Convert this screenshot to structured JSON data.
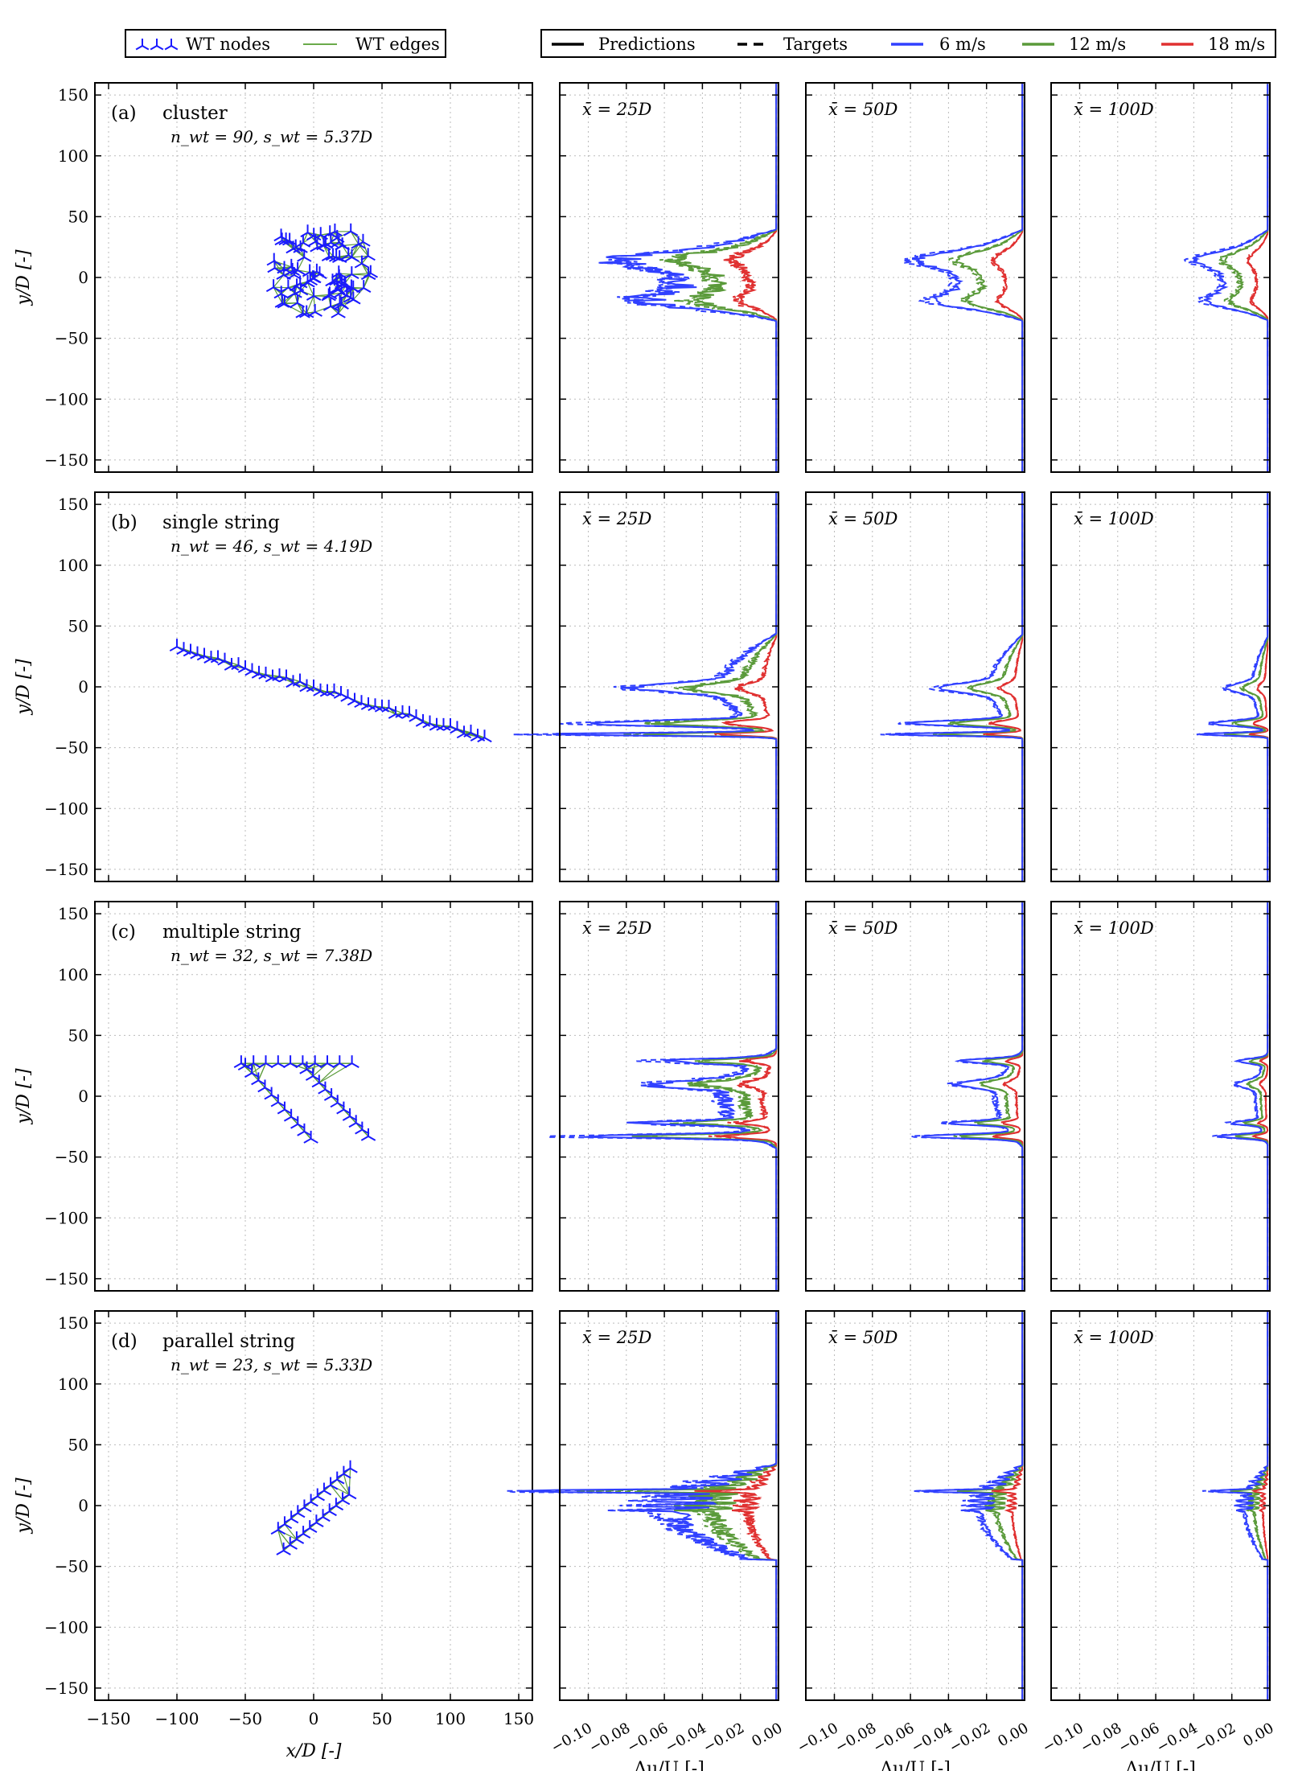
{
  "chart_data": {
    "type": "line",
    "legend_layout": {
      "nodes_label": "WT nodes",
      "edges_label": "WT edges",
      "placement": "top-left"
    },
    "legend_profiles": {
      "predictions_label": "Predictions",
      "targets_label": "Targets",
      "speeds": [
        {
          "label": "6 m/s",
          "color": "#3040ff"
        },
        {
          "label": "12 m/s",
          "color": "#5a9a3a"
        },
        {
          "label": "18 m/s",
          "color": "#e03030"
        }
      ],
      "placement": "top-right"
    },
    "layout_axes": {
      "xlabel": "x/D [-]",
      "ylabel": "y/D [-]",
      "xlim": [
        -160,
        160
      ],
      "ylim": [
        -160,
        160
      ],
      "xticks": [
        "−150",
        "−100",
        "−50",
        "0",
        "50",
        "100",
        "150"
      ],
      "yticks": [
        "150",
        "100",
        "50",
        "0",
        "−50",
        "−100",
        "−150"
      ]
    },
    "profile_axes": {
      "xlabel": "Δu/U [-]",
      "xlim": [
        -0.115,
        0.0
      ],
      "ylim": [
        -160,
        160
      ],
      "xticks": [
        "−0.10",
        "−0.08",
        "−0.06",
        "−0.04",
        "−0.02",
        "0.00"
      ],
      "columns": [
        "x̄ = 25D",
        "x̄ = 50D",
        "x̄ = 100D"
      ]
    },
    "grid": true,
    "rows": [
      {
        "panel": "(a)",
        "name": "cluster",
        "stats": "n_wt = 90, s_wt = 5.37D",
        "layout_kind": "cluster",
        "n_wt": 90,
        "layout_extent": {
          "x": [
            -30,
            42
          ],
          "y": [
            -30,
            38
          ]
        },
        "wake": {
          "y_min": -36,
          "y_max": 40,
          "peak": [
            0.095,
            0.065,
            0.045
          ],
          "pattern": "broad"
        }
      },
      {
        "panel": "(b)",
        "name": "single string",
        "stats": "n_wt = 46, s_wt = 4.19D",
        "layout_kind": "line",
        "n_wt": 46,
        "layout_extent": {
          "x": [
            -100,
            125
          ],
          "y": [
            -42,
            32
          ]
        },
        "wake": {
          "y_min": -44,
          "y_max": 45,
          "peak": [
            0.115,
            0.07,
            0.035
          ],
          "pattern": "spikes"
        }
      },
      {
        "panel": "(c)",
        "name": "multiple string",
        "stats": "n_wt = 32, s_wt = 7.38D",
        "layout_kind": "multi",
        "n_wt": 32,
        "layout_extent": {
          "x": [
            -55,
            45
          ],
          "y": [
            -40,
            30
          ]
        },
        "wake": {
          "y_min": -44,
          "y_max": 40,
          "peak": [
            0.095,
            0.05,
            0.025
          ],
          "pattern": "multi"
        }
      },
      {
        "panel": "(d)",
        "name": "parallel string",
        "stats": "n_wt = 23, s_wt = 5.33D",
        "layout_kind": "parallel",
        "n_wt": 23,
        "layout_extent": {
          "x": [
            -28,
            28
          ],
          "y": [
            -38,
            35
          ]
        },
        "wake": {
          "y_min": -44,
          "y_max": 35,
          "peak": [
            0.11,
            0.045,
            0.025
          ],
          "pattern": "dense"
        }
      }
    ]
  }
}
